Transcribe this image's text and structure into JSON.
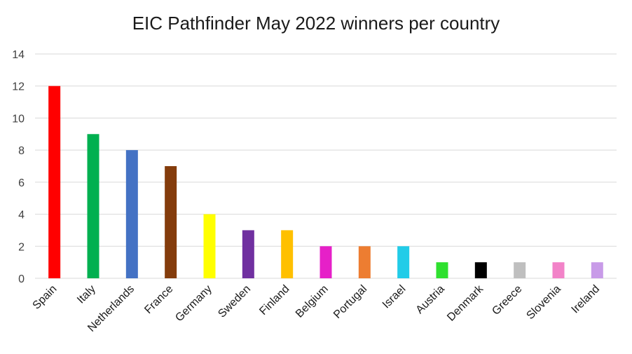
{
  "chart_data": {
    "type": "bar",
    "title": "EIC Pathfinder May 2022 winners per country",
    "xlabel": "",
    "ylabel": "",
    "ylim": [
      0,
      14
    ],
    "yticks": [
      0,
      2,
      4,
      6,
      8,
      10,
      12,
      14
    ],
    "grid": true,
    "legend": "none",
    "categories": [
      "Spain",
      "Italy",
      "Netherlands",
      "France",
      "Germany",
      "Sweden",
      "Finland",
      "Belgium",
      "Portugal",
      "Israel",
      "Austria",
      "Denmark",
      "Greece",
      "Slovenia",
      "Ireland"
    ],
    "values": [
      12,
      9,
      8,
      7,
      4,
      3,
      3,
      2,
      2,
      2,
      1,
      1,
      1,
      1,
      1
    ],
    "colors": [
      "#ff0000",
      "#00b050",
      "#4472c4",
      "#843c0c",
      "#ffff00",
      "#7030a0",
      "#ffc000",
      "#e620c8",
      "#ed7d31",
      "#22cce8",
      "#2fe02f",
      "#000000",
      "#bfbfbf",
      "#f283c8",
      "#c89be8"
    ]
  }
}
